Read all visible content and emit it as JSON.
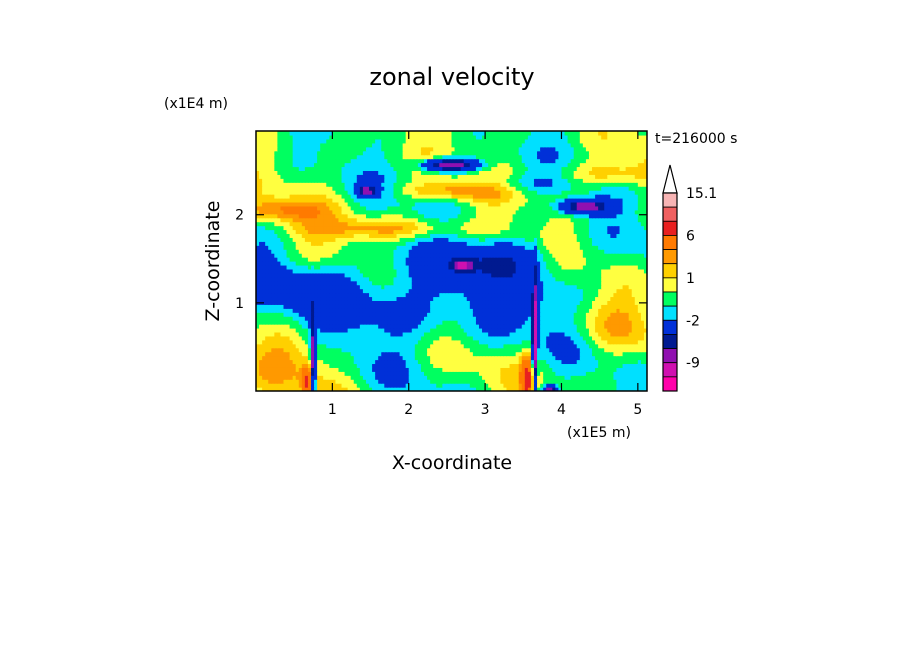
{
  "chart_data": {
    "type": "heatmap",
    "title": "zonal velocity",
    "xlabel": "X-coordinate",
    "ylabel": "Z-coordinate",
    "x_multiplier": "(x1E5 m)",
    "y_multiplier": "(x1E4 m)",
    "time_label": "t=216000 s",
    "xlim": [
      0,
      5.12
    ],
    "ylim": [
      0,
      2.95
    ],
    "x_ticks": [
      1,
      2,
      3,
      4,
      5
    ],
    "x_tick_labels": [
      "1",
      "2",
      "3",
      "4",
      "5"
    ],
    "y_ticks": [
      1,
      2
    ],
    "y_tick_labels": [
      "1",
      "2"
    ],
    "colorbar": {
      "position": "right",
      "extend": "max",
      "levels": [
        {
          "lower": 12,
          "color": "#f7b4b4"
        },
        {
          "lower": 9,
          "color": "#f06060"
        },
        {
          "lower": 6,
          "color": "#e82020"
        },
        {
          "lower": 3,
          "color": "#ff7a00"
        },
        {
          "lower": 2,
          "color": "#ff9900"
        },
        {
          "lower": 1,
          "color": "#ffd000"
        },
        {
          "lower": 0,
          "color": "#ffff40"
        },
        {
          "lower": -1,
          "color": "#00ff60"
        },
        {
          "lower": -2,
          "color": "#00e0ff"
        },
        {
          "lower": -5,
          "color": "#0030d8"
        },
        {
          "lower": -7,
          "color": "#001a90"
        },
        {
          "lower": -9,
          "color": "#9010b0"
        },
        {
          "lower": -12,
          "color": "#d010b0"
        },
        {
          "lower": -15,
          "color": "#ff00aa"
        }
      ],
      "labels": [
        {
          "value": 15.1,
          "text": "15.1"
        },
        {
          "value": 6,
          "text": "6"
        },
        {
          "value": 1,
          "text": "1"
        },
        {
          "value": -2,
          "text": "-2"
        },
        {
          "value": -9,
          "text": "-9"
        }
      ]
    }
  }
}
